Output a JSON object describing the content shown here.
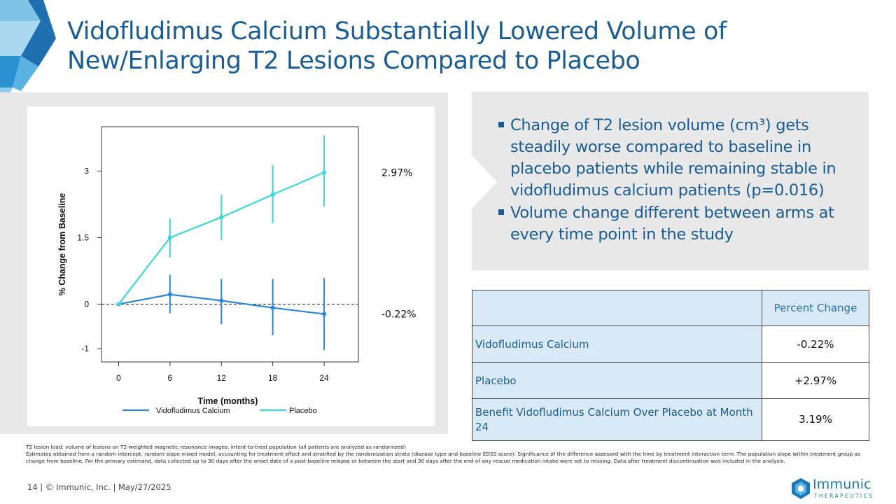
{
  "slide": {
    "title": "Vidofludimus Calcium Substantially Lowered Volume of New/Enlarging T2 Lesions Compared to Placebo",
    "footer": "14   |  © Immunic, Inc.  | May/27/2025",
    "logo_name": "Immunic",
    "logo_sub": "THERAPEUTICS"
  },
  "callout": {
    "bullets": [
      "Change of T2 lesion volume (cm³) gets steadily worse compared to baseline in placebo patients while remaining stable in vidofludimus calcium patients (p=0.016)",
      "Volume change different between arms at every time point in the study"
    ]
  },
  "table": {
    "header": [
      "",
      "Percent Change"
    ],
    "rows": [
      {
        "label": "Vidofludimus Calcium",
        "value": "-0.22%"
      },
      {
        "label": "Placebo",
        "value": "+2.97%"
      },
      {
        "label": "Benefit Vidofludimus Calcium Over Placebo at Month 24",
        "value": "3.19%"
      }
    ]
  },
  "footnote": {
    "line1": "T2 lesion load: volume of lesions on T2-weighted magnetic resonance images; intent-to-treat population (all patients are analyzed as randomized)",
    "line2": "Estimates obtained from a random intercept, random slope mixed model, accounting for treatment effect and stratified by the randomization strata (disease type and baseline EDSS score). Significance of the difference assessed with the time by treatment interaction term. The population slope within treatment group as change from baseline. For the primary estimand, data collected up to 30 days after the onset date of a post-baseline relapse or between the start and 30 days after the end of any rescue medication intake were set to missing. Data after treatment discontinuation was included in the analysis."
  },
  "colors": {
    "title": "#1a5d95",
    "vidofludimus": "#2e86d4",
    "placebo": "#3ed6d6",
    "gray_panel": "#e8e8e8",
    "table_header": "#d9e9f5"
  },
  "chart_data": {
    "type": "line",
    "title": "",
    "xlabel": "Time (months)",
    "ylabel": "% Change from Baseline",
    "x": [
      0,
      6,
      12,
      18,
      24
    ],
    "xticks": [
      "0",
      "6",
      "12",
      "18",
      "24"
    ],
    "yticks": [
      -1,
      0,
      1.5,
      3
    ],
    "ytick_labels": [
      "-1",
      "0",
      "1.5",
      "3"
    ],
    "xlim": [
      -2,
      28
    ],
    "ylim": [
      -1.3,
      4.0
    ],
    "reference_line_y": 0,
    "series": [
      {
        "name": "Vidofludimus Calcium",
        "values": [
          0,
          0.22,
          0.08,
          -0.08,
          -0.22
        ],
        "lower": [
          0,
          -0.2,
          -0.45,
          -0.7,
          -1.03
        ],
        "upper": [
          0,
          0.66,
          0.57,
          0.57,
          0.59
        ],
        "end_label": "-0.22%"
      },
      {
        "name": "Placebo",
        "values": [
          0,
          1.5,
          1.96,
          2.47,
          2.97
        ],
        "lower": [
          0,
          1.05,
          1.45,
          1.83,
          2.2
        ],
        "upper": [
          0,
          1.93,
          2.47,
          3.14,
          3.8
        ],
        "end_label": "2.97%"
      }
    ],
    "legend_position": "bottom"
  }
}
